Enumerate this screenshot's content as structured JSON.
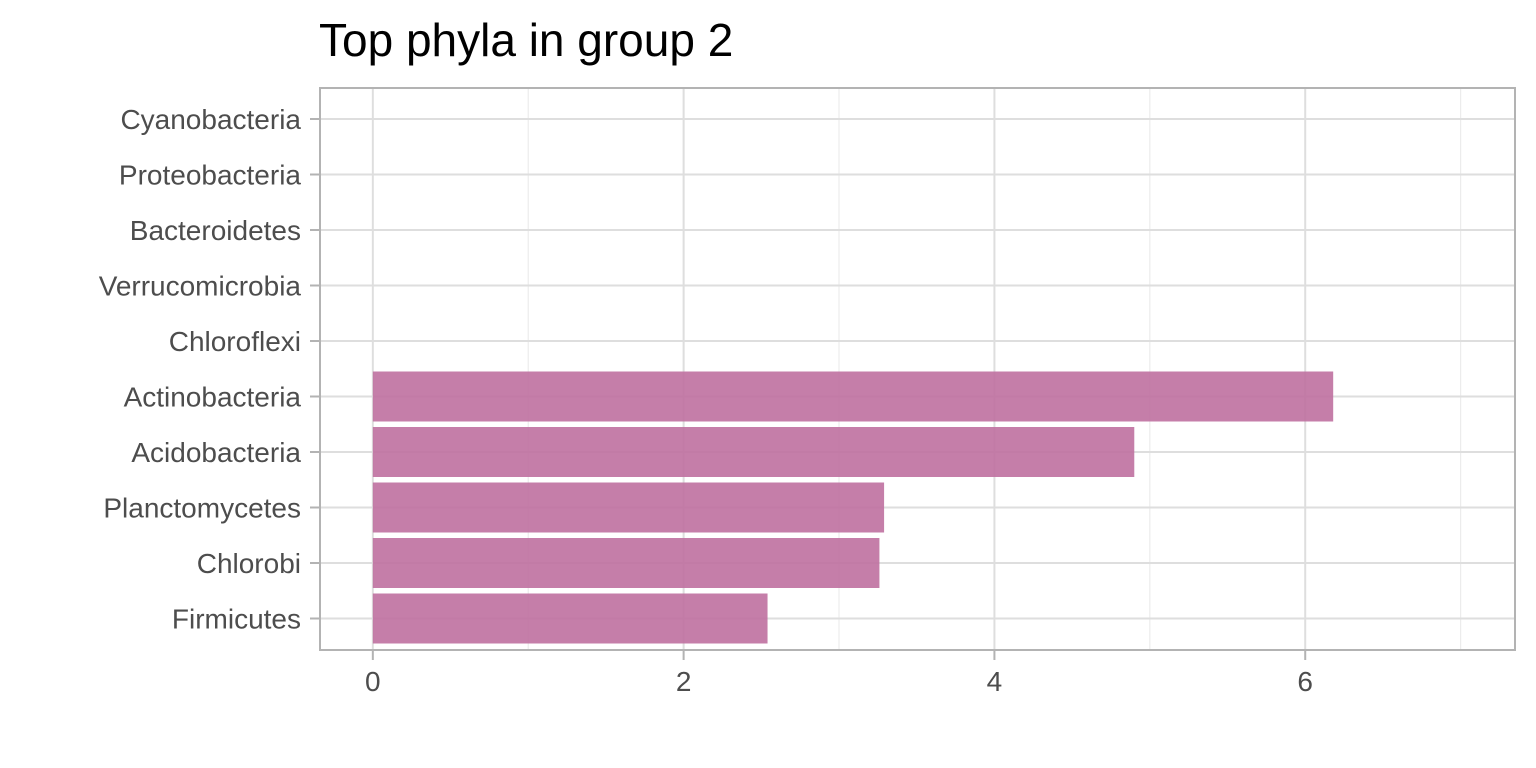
{
  "chart_data": {
    "type": "bar",
    "orientation": "horizontal",
    "title": "Top phyla in group 2",
    "xlabel": "",
    "ylabel": "",
    "categories": [
      "Cyanobacteria",
      "Proteobacteria",
      "Bacteroidetes",
      "Verrucomicrobia",
      "Chloroflexi",
      "Actinobacteria",
      "Acidobacteria",
      "Planctomycetes",
      "Chlorobi",
      "Firmicutes"
    ],
    "values": [
      0,
      0,
      0,
      0,
      0,
      6.18,
      4.9,
      3.29,
      3.26,
      2.54
    ],
    "xlim": [
      -0.34,
      7.35
    ],
    "x_ticks": [
      0,
      2,
      4,
      6
    ],
    "x_tick_labels": [
      "0",
      "2",
      "4",
      "6"
    ],
    "x_minor_ticks": [
      1,
      3,
      5,
      7
    ],
    "grid": true,
    "bar_color": "#bf70a0",
    "legend": "none"
  }
}
